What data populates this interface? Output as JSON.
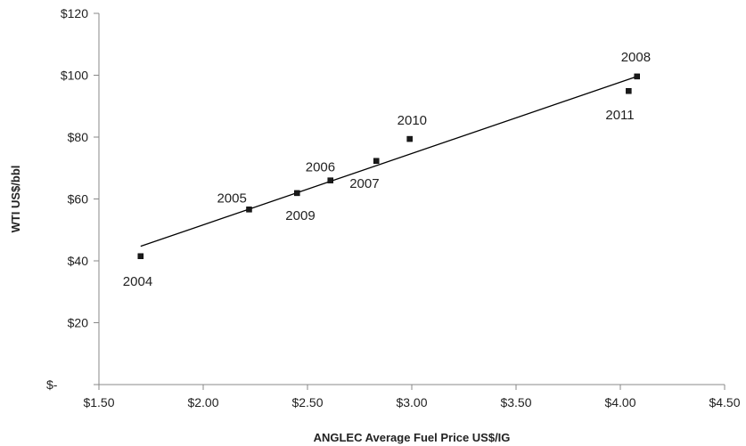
{
  "chart_data": {
    "type": "scatter",
    "title": "",
    "xlabel": "ANGLEC Average Fuel Price US$/IG",
    "ylabel": "WTI US$/bbl",
    "xlim": [
      1.5,
      4.5
    ],
    "ylim": [
      0,
      120
    ],
    "x_ticks": [
      {
        "value": 1.5,
        "label": "$1.50"
      },
      {
        "value": 2.0,
        "label": "$2.00"
      },
      {
        "value": 2.5,
        "label": "$2.50"
      },
      {
        "value": 3.0,
        "label": "$3.00"
      },
      {
        "value": 3.5,
        "label": "$3.50"
      },
      {
        "value": 4.0,
        "label": "$4.00"
      },
      {
        "value": 4.5,
        "label": "$4.50"
      }
    ],
    "y_ticks": [
      {
        "value": 0,
        "label": "$-"
      },
      {
        "value": 20,
        "label": "$20"
      },
      {
        "value": 40,
        "label": "$40"
      },
      {
        "value": 60,
        "label": "$60"
      },
      {
        "value": 80,
        "label": "$80"
      },
      {
        "value": 100,
        "label": "$100"
      },
      {
        "value": 120,
        "label": "$120"
      }
    ],
    "grid": false,
    "legend": "none",
    "points": [
      {
        "label": "2004",
        "x": 1.7,
        "y": 41.5
      },
      {
        "label": "2005",
        "x": 2.22,
        "y": 56.6
      },
      {
        "label": "2006",
        "x": 2.61,
        "y": 66.0
      },
      {
        "label": "2007",
        "x": 2.83,
        "y": 72.3
      },
      {
        "label": "2008",
        "x": 4.08,
        "y": 99.6
      },
      {
        "label": "2009",
        "x": 2.45,
        "y": 61.9
      },
      {
        "label": "2010",
        "x": 2.99,
        "y": 79.4
      },
      {
        "label": "2011",
        "x": 4.04,
        "y": 94.9
      }
    ],
    "trendline": {
      "type": "linear",
      "x_range": [
        1.7,
        4.08
      ],
      "y_values": [
        44.7,
        99.6
      ]
    },
    "marker_color": "#1a1a1a",
    "line_color": "#000000"
  }
}
